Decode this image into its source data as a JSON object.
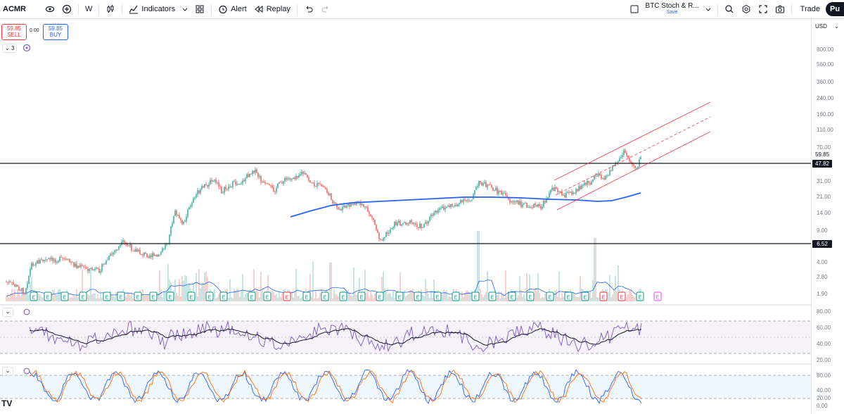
{
  "toolbar": {
    "symbol": "ACMR",
    "interval": "W",
    "indicators_label": "Indicators",
    "alert_label": "Alert",
    "replay_label": "Replay",
    "layout_name": "BTC Stoch & R...",
    "layout_save": "Save",
    "trade_label": "Trade",
    "publish_label": "Pu"
  },
  "order": {
    "sell_price": "59.85",
    "sell_label": "SELL",
    "spread": "0.00",
    "buy_price": "59.85",
    "buy_label": "BUY"
  },
  "legend": {
    "collapse_count": "3"
  },
  "price_scale": {
    "currency": "USD",
    "main_ticks": [
      "800.00",
      "560.00",
      "360.00",
      "240.00",
      "160.00",
      "110.00",
      "70.00",
      "31.00",
      "21.00",
      "14.00",
      "9.00",
      "4.00",
      "2.80",
      "1.90"
    ],
    "current_price": "59.85",
    "level_high": "47.82",
    "level_low": "6.52",
    "rsi_ticks": [
      "80.00",
      "60.00",
      "40.00",
      "20.00"
    ],
    "stoch_ticks": [
      "80.00",
      "40.00",
      "20.00",
      "0.00"
    ]
  },
  "colors": {
    "up": "#26a69a",
    "down": "#ef5350",
    "ma": "#2962ff",
    "channel": "#f23645",
    "rsi_line": "#7e57c2",
    "stoch_k": "#2962ff",
    "stoch_d": "#ff6d00"
  },
  "icons": [
    "eye-icon",
    "plus-circle-icon",
    "candles-icon",
    "indicators-icon",
    "templates-icon",
    "alert-clock-icon",
    "replay-icon",
    "undo-icon",
    "redo-icon",
    "layout-icon",
    "chevron-down-icon",
    "search-icon",
    "settings-icon",
    "fullscreen-icon",
    "camera-icon",
    "tradingview-logo-icon"
  ]
}
